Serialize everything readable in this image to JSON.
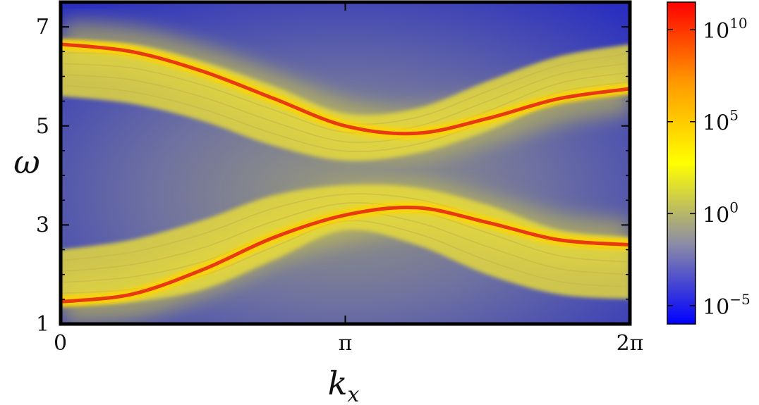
{
  "chart_data": {
    "type": "heatmap",
    "title": "",
    "xlabel": "k_x",
    "ylabel": "ω",
    "xlim": [
      0,
      6.2832
    ],
    "ylim": [
      1,
      7.5
    ],
    "x_ticks": [
      {
        "value": 0,
        "label": "0"
      },
      {
        "value": 3.1416,
        "label": "π"
      },
      {
        "value": 6.2832,
        "label": "2π"
      }
    ],
    "y_ticks": [
      {
        "value": 1,
        "label": "1"
      },
      {
        "value": 3,
        "label": "3"
      },
      {
        "value": 5,
        "label": "5"
      },
      {
        "value": 7,
        "label": "7"
      }
    ],
    "colorbar": {
      "scale": "log",
      "range": [
        -6,
        11.5
      ],
      "ticks": [
        {
          "exponent": -5,
          "label": "10",
          "sup": "−5"
        },
        {
          "exponent": 0,
          "label": "10",
          "sup": "0"
        },
        {
          "exponent": 5,
          "label": "10",
          "sup": "5"
        },
        {
          "exponent": 10,
          "label": "10",
          "sup": "10"
        }
      ],
      "colors": [
        "#0000ff",
        "#8c8ca6",
        "#ffff00",
        "#ff9a00",
        "#ff0000"
      ]
    },
    "bands": [
      {
        "k": [
          0,
          0.785,
          1.571,
          2.356,
          3.142,
          3.927,
          4.712,
          5.498,
          6.283
        ],
        "omega_peak": [
          6.65,
          6.5,
          6.1,
          5.55,
          5.0,
          4.85,
          5.15,
          5.55,
          5.75
        ],
        "continuum_low": [
          5.6,
          5.45,
          5.1,
          4.6,
          4.3,
          4.45,
          4.9,
          5.5,
          5.7
        ],
        "continuum_high": [
          6.7,
          6.65,
          6.3,
          5.8,
          5.25,
          5.35,
          5.9,
          6.4,
          6.65
        ]
      },
      {
        "k": [
          0,
          0.785,
          1.571,
          2.356,
          3.142,
          3.927,
          4.712,
          5.498,
          6.283
        ],
        "omega_peak": [
          1.45,
          1.6,
          2.1,
          2.75,
          3.2,
          3.35,
          3.05,
          2.7,
          2.6
        ],
        "continuum_low": [
          1.4,
          1.45,
          1.7,
          2.3,
          2.9,
          2.6,
          2.0,
          1.6,
          1.5
        ],
        "continuum_high": [
          2.5,
          2.7,
          3.1,
          3.6,
          3.8,
          3.75,
          3.4,
          2.9,
          2.75
        ]
      }
    ]
  }
}
